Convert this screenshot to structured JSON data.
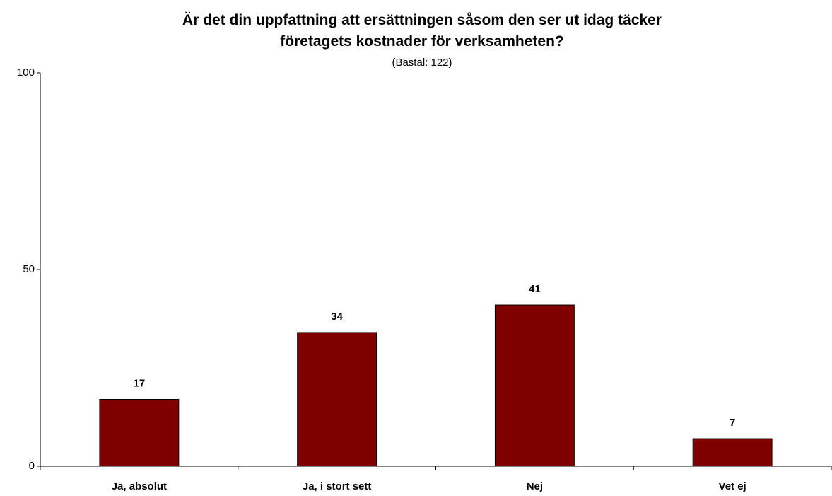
{
  "chart_data": {
    "type": "bar",
    "title": "Är det din uppfattning att ersättningen såsom den ser ut idag täcker företagets kostnader för verksamheten?",
    "subtitle": "(Bastal: 122)",
    "categories": [
      "Ja, absolut",
      "Ja, i stort sett",
      "Nej",
      "Vet ej"
    ],
    "values": [
      17,
      34,
      41,
      7
    ],
    "color": "#800000",
    "ylim": [
      0,
      100
    ],
    "yticks": [
      0,
      50,
      100
    ],
    "grid": false
  }
}
